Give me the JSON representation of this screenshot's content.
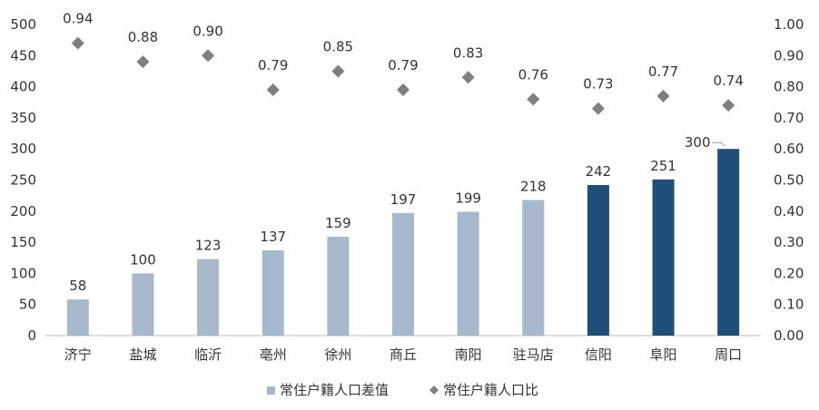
{
  "chart_data": {
    "type": "bar",
    "categories": [
      "济宁",
      "盐城",
      "临沂",
      "亳州",
      "徐州",
      "商丘",
      "南阳",
      "驻马店",
      "信阳",
      "阜阳",
      "周口"
    ],
    "series": [
      {
        "name": "常住户籍人口差值",
        "type": "bar",
        "axis": "left",
        "values": [
          58,
          100,
          123,
          137,
          159,
          197,
          199,
          218,
          242,
          251,
          300
        ],
        "labels": [
          "58",
          "100",
          "123",
          "137",
          "159",
          "197",
          "199",
          "218",
          "242",
          "251",
          "300"
        ],
        "colors": [
          "#a6b8cc",
          "#a6b8cc",
          "#a6b8cc",
          "#a6b8cc",
          "#a6b8cc",
          "#a6b8cc",
          "#a6b8cc",
          "#a6b8cc",
          "#1f4e79",
          "#1f4e79",
          "#1f4e79"
        ]
      },
      {
        "name": "常住户籍人口比",
        "type": "scatter",
        "axis": "right",
        "marker": "diamond",
        "color": "#7f7f7f",
        "values": [
          0.94,
          0.88,
          0.9,
          0.79,
          0.85,
          0.79,
          0.83,
          0.76,
          0.73,
          0.77,
          0.74
        ],
        "labels": [
          "0.94",
          "0.88",
          "0.90",
          "0.79",
          "0.85",
          "0.79",
          "0.83",
          "0.76",
          "0.73",
          "0.77",
          "0.74"
        ]
      }
    ],
    "y_left": {
      "min": 0,
      "max": 500,
      "ticks": [
        "0",
        "50",
        "100",
        "150",
        "200",
        "250",
        "300",
        "350",
        "400",
        "450",
        "500"
      ]
    },
    "y_right": {
      "min": 0,
      "max": 1,
      "ticks": [
        "0.00",
        "0.10",
        "0.20",
        "0.30",
        "0.40",
        "0.50",
        "0.60",
        "0.70",
        "0.80",
        "0.90",
        "1.00"
      ]
    },
    "grid": false,
    "legend": "bottom-center",
    "legend_items": [
      {
        "label": "常住户籍人口差值",
        "marker": "square",
        "color": "#a6b8cc"
      },
      {
        "label": "常住户籍人口比",
        "marker": "diamond",
        "color": "#7f7f7f"
      }
    ]
  }
}
